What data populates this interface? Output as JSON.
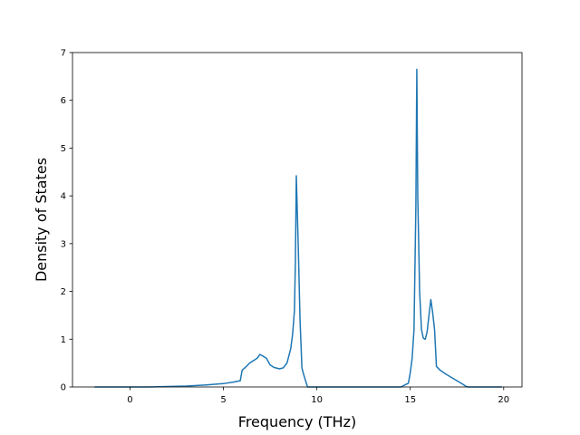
{
  "chart_data": {
    "type": "line",
    "title": "",
    "xlabel": "Frequency (THz)",
    "ylabel": "Density of States",
    "xlim": [
      -3.08,
      20.98
    ],
    "ylim": [
      0,
      7
    ],
    "xticks": [
      0,
      5,
      10,
      15,
      20
    ],
    "yticks": [
      0,
      1,
      2,
      3,
      4,
      5,
      6,
      7
    ],
    "grid": false,
    "legend": "none",
    "line_color": "#1f77b4",
    "series": [
      {
        "x": [
          -1.9,
          -1.0,
          0.0,
          1.0,
          2.0,
          3.0,
          4.0,
          5.0,
          5.5,
          5.9,
          6.0,
          6.2,
          6.4,
          6.6,
          6.8,
          6.95,
          7.1,
          7.3,
          7.5,
          7.7,
          8.0,
          8.2,
          8.4,
          8.6,
          8.7,
          8.8,
          8.85,
          8.9,
          9.0,
          9.1,
          9.2,
          9.3,
          9.5,
          10.0,
          11.0,
          12.0,
          13.0,
          14.0,
          14.5,
          14.9,
          15.0,
          15.1,
          15.2,
          15.3,
          15.35,
          15.4,
          15.5,
          15.6,
          15.7,
          15.8,
          15.9,
          16.0,
          16.1,
          16.2,
          16.3,
          16.4,
          16.6,
          16.9,
          17.2,
          17.5,
          17.8,
          18.0,
          18.1,
          19.0,
          19.9
        ],
        "values": [
          0.0,
          0.0,
          0.0,
          0.0,
          0.01,
          0.02,
          0.04,
          0.07,
          0.1,
          0.13,
          0.35,
          0.42,
          0.5,
          0.55,
          0.6,
          0.68,
          0.65,
          0.6,
          0.46,
          0.41,
          0.38,
          0.4,
          0.5,
          0.8,
          1.1,
          1.6,
          2.6,
          4.42,
          3.0,
          1.4,
          0.4,
          0.25,
          0.0,
          0.0,
          0.0,
          0.0,
          0.0,
          0.0,
          0.0,
          0.08,
          0.3,
          0.6,
          1.2,
          3.8,
          6.65,
          4.0,
          2.0,
          1.2,
          1.02,
          1.0,
          1.15,
          1.5,
          1.83,
          1.55,
          1.2,
          0.43,
          0.35,
          0.27,
          0.2,
          0.13,
          0.06,
          0.01,
          0.0,
          0.0,
          0.0
        ]
      }
    ]
  }
}
